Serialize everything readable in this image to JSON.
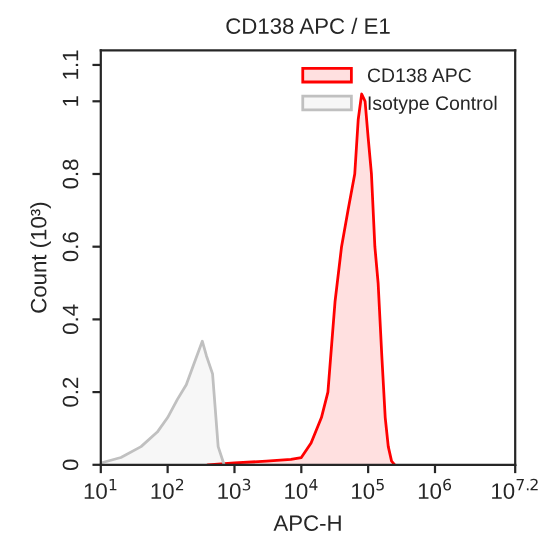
{
  "chart_data": {
    "type": "area",
    "title": "CD138 APC / E1",
    "xlabel": "APC-H",
    "ylabel": "Count (10³)",
    "log": "x",
    "xlim": [
      10,
      15848932
    ],
    "ylim": [
      0,
      1.14
    ],
    "xticks": [
      {
        "value": 10,
        "label": "10$^{1}$"
      },
      {
        "value": 100,
        "label": "10$^{2}$"
      },
      {
        "value": 1000,
        "label": "10$^{3}$"
      },
      {
        "value": 10000,
        "label": "10$^{4}$"
      },
      {
        "value": 100000,
        "label": "10$^{5}$"
      },
      {
        "value": 1000000,
        "label": "10$^{6}$"
      },
      {
        "value": 15848932,
        "label": "10$^{7.2}$"
      }
    ],
    "yticks": [
      0,
      0.2,
      0.4,
      0.6,
      0.8,
      1,
      1.1
    ],
    "legend": "top right",
    "series": [
      {
        "name": "CD138 APC",
        "color": "#ff0000",
        "x": [
          400,
          1000,
          3000,
          7000,
          10000,
          14000,
          20000,
          25000,
          32000,
          40000,
          50000,
          63000,
          71000,
          80000,
          90000,
          100000,
          112000,
          126000,
          141000,
          160000,
          180000,
          200000,
          224000,
          250000
        ],
        "values": [
          0,
          0.005,
          0.01,
          0.015,
          0.02,
          0.06,
          0.13,
          0.2,
          0.45,
          0.6,
          0.7,
          0.8,
          0.95,
          1.02,
          1.0,
          0.9,
          0.8,
          0.6,
          0.5,
          0.3,
          0.13,
          0.05,
          0.01,
          0
        ]
      },
      {
        "name": "Isotype Control",
        "color": "#c0c0c0",
        "x": [
          10,
          20,
          40,
          70,
          100,
          140,
          190,
          250,
          330,
          380,
          470,
          570,
          700
        ],
        "values": [
          0.005,
          0.02,
          0.05,
          0.09,
          0.13,
          0.18,
          0.22,
          0.28,
          0.34,
          0.3,
          0.25,
          0.05,
          0
        ]
      }
    ]
  }
}
